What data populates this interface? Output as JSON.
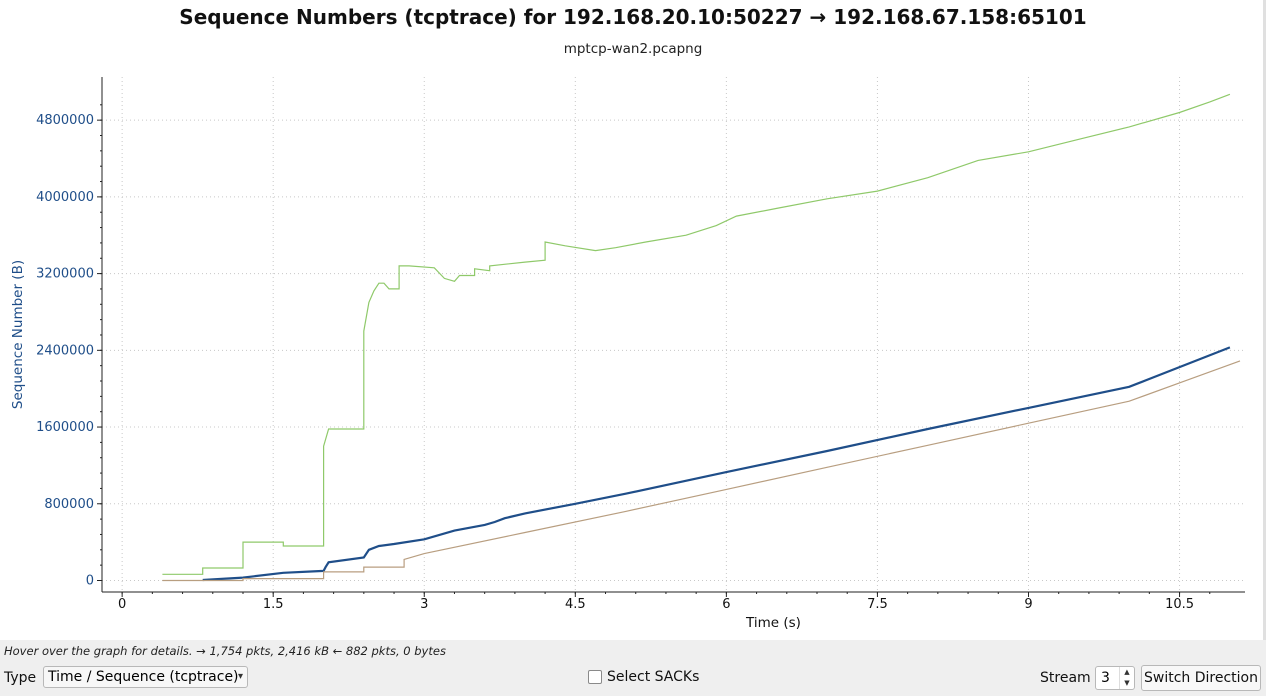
{
  "window": {
    "title": "Sequence Numbers (tcptrace) for 192.168.20.10:50227 → 192.168.67.158:65101",
    "subtitle": "mptcp-wan2.pcapng"
  },
  "status": {
    "hint": "Hover over the graph for details. → 1,754 pkts, 2,416 kB ← 882 pkts, 0 bytes"
  },
  "controls": {
    "type_label": "Type",
    "type_value": "Time / Sequence (tcptrace)",
    "select_sacks_label": "Select SACKs",
    "select_sacks_checked": false,
    "stream_label": "Stream",
    "stream_value": "3",
    "switch_direction_label": "Switch Direction"
  },
  "colors": {
    "window_line": "#8fc96a",
    "segments": "#1f4e89",
    "ack_line": "#b89e80",
    "axis_label": "#1f4e89",
    "grid": "#c8c8c8"
  },
  "chart_data": {
    "type": "line",
    "title": "Sequence Numbers (tcptrace) for 192.168.20.10:50227 → 192.168.67.158:65101",
    "subtitle": "mptcp-wan2.pcapng",
    "xlabel": "Time (s)",
    "ylabel": "Sequence Number (B)",
    "xlim": [
      -0.2,
      11.15
    ],
    "ylim": [
      -120000,
      5250000
    ],
    "xticks": [
      0,
      1.5,
      3,
      4.5,
      6,
      7.5,
      9,
      10.5
    ],
    "xtick_labels": [
      "0",
      "1.5",
      "3",
      "4.5",
      "6",
      "7.5",
      "9",
      "10.5"
    ],
    "yticks": [
      0,
      800000,
      1600000,
      2400000,
      3200000,
      4000000,
      4800000
    ],
    "ytick_labels": [
      "0",
      "800000",
      "1600000",
      "2400000",
      "3200000",
      "4000000",
      "4800000"
    ],
    "grid": true,
    "series": [
      {
        "kind": "receive-window",
        "x": [
          0.4,
          0.8,
          0.8,
          1.2,
          1.2,
          1.6,
          1.6,
          2.0,
          2.0,
          2.05,
          2.05,
          2.4,
          2.4,
          2.45,
          2.5,
          2.55,
          2.6,
          2.65,
          2.75,
          2.75,
          2.85,
          2.85,
          3.1,
          3.2,
          3.3,
          3.35,
          3.5,
          3.5,
          3.65,
          3.65,
          4.0,
          4.2,
          4.2,
          4.4,
          4.7,
          4.9,
          5.2,
          5.6,
          5.9,
          6.1,
          6.5,
          7.0,
          7.5,
          8.0,
          8.5,
          9.0,
          9.5,
          10.0,
          10.5,
          10.8,
          11.0
        ],
        "y": [
          65000,
          65000,
          130000,
          130000,
          400000,
          400000,
          360000,
          360000,
          1400000,
          1580000,
          1580000,
          1580000,
          2600000,
          2900000,
          3020000,
          3100000,
          3100000,
          3040000,
          3040000,
          3280000,
          3280000,
          3280000,
          3260000,
          3150000,
          3120000,
          3180000,
          3180000,
          3250000,
          3230000,
          3280000,
          3320000,
          3340000,
          3530000,
          3490000,
          3440000,
          3470000,
          3530000,
          3600000,
          3700000,
          3800000,
          3880000,
          3980000,
          4060000,
          4200000,
          4380000,
          4470000,
          4600000,
          4730000,
          4880000,
          4990000,
          5070000
        ]
      },
      {
        "kind": "data-segments",
        "x": [
          0.8,
          1.2,
          1.6,
          2.0,
          2.02,
          2.05,
          2.4,
          2.45,
          2.55,
          2.7,
          3.0,
          3.3,
          3.5,
          3.6,
          3.7,
          3.8,
          4.0,
          4.5,
          5.0,
          6.0,
          7.0,
          8.0,
          9.0,
          10.0,
          11.0
        ],
        "y": [
          5000,
          30000,
          80000,
          100000,
          140000,
          190000,
          240000,
          320000,
          360000,
          380000,
          430000,
          520000,
          560000,
          580000,
          610000,
          650000,
          700000,
          800000,
          905000,
          1130000,
          1350000,
          1580000,
          1800000,
          2020000,
          2430000
        ]
      },
      {
        "kind": "ack-line",
        "x": [
          0.4,
          1.2,
          1.2,
          2.0,
          2.0,
          2.4,
          2.4,
          2.8,
          2.8,
          3.0,
          4.0,
          5.0,
          6.0,
          7.0,
          8.0,
          9.0,
          10.0,
          11.1
        ],
        "y": [
          0,
          0,
          20000,
          20000,
          90000,
          90000,
          140000,
          140000,
          220000,
          280000,
          500000,
          720000,
          950000,
          1180000,
          1410000,
          1640000,
          1870000,
          2290000
        ]
      }
    ]
  }
}
